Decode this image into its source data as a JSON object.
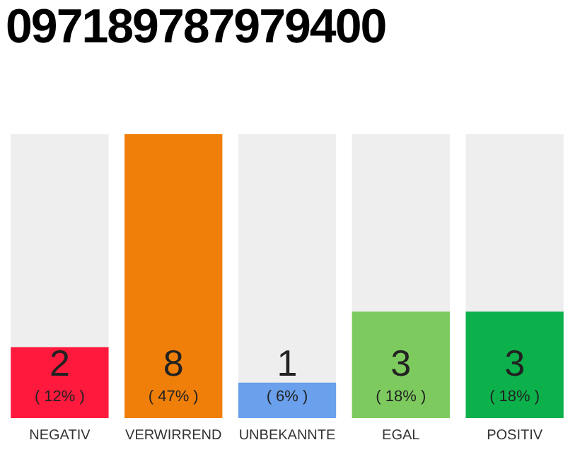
{
  "chart_data": {
    "type": "bar",
    "title": "097189787979400",
    "categories": [
      "NEGATIV",
      "VERWIRREND",
      "UNBEKANNTE",
      "EGAL",
      "POSITIV"
    ],
    "values": [
      2,
      8,
      1,
      3,
      3
    ],
    "colors": [
      "#ff1a3d",
      "#f07f0a",
      "#6aa0ec",
      "#7dcb5f",
      "#0db14b"
    ],
    "ylim": [
      0,
      8
    ],
    "tick_labels": "x",
    "legend": false,
    "value_labels": [
      "2\n( 12% )",
      "8\n( 47% )",
      "1\n( 6% )",
      "3\n( 18% )",
      "3\n( 18% )"
    ]
  }
}
